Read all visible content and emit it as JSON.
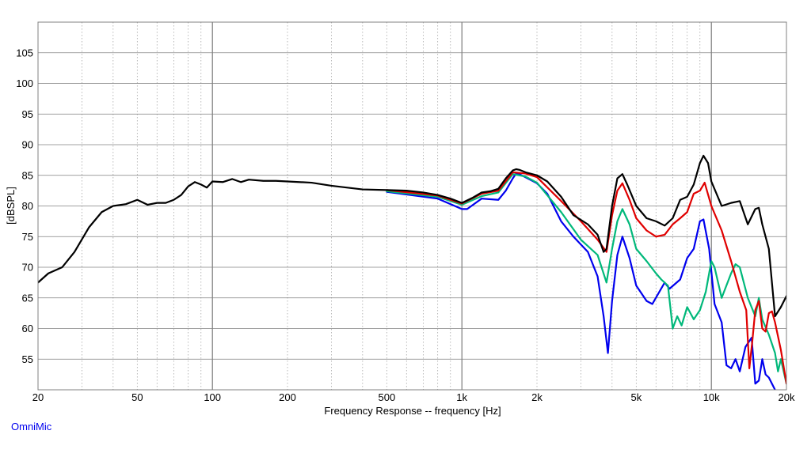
{
  "chart_data": {
    "type": "line",
    "xscale": "log",
    "xlim": [
      20,
      20000
    ],
    "ylim": [
      50,
      110
    ],
    "xlabel": "Frequency Response -- frequency [Hz]",
    "ylabel": "[dBSPL]",
    "x_ticks": [
      20,
      50,
      100,
      200,
      500,
      1000,
      2000,
      5000,
      10000,
      20000
    ],
    "x_tick_labels": [
      "20",
      "50",
      "100",
      "200",
      "500",
      "1k",
      "2k",
      "5k",
      "10k",
      "20k"
    ],
    "y_ticks": [
      55,
      60,
      65,
      70,
      75,
      80,
      85,
      90,
      95,
      100,
      105
    ],
    "y_tick_labels": [
      "55",
      "60",
      "65",
      "70",
      "75",
      "80",
      "85",
      "90",
      "95",
      "100",
      "105"
    ],
    "grid": true,
    "series": [
      {
        "color": "#000000",
        "points": [
          [
            20,
            67.5
          ],
          [
            22,
            69
          ],
          [
            25,
            70
          ],
          [
            28,
            72.5
          ],
          [
            32,
            76.5
          ],
          [
            36,
            79
          ],
          [
            40,
            80
          ],
          [
            45,
            80.3
          ],
          [
            50,
            81
          ],
          [
            55,
            80.2
          ],
          [
            60,
            80.5
          ],
          [
            65,
            80.5
          ],
          [
            70,
            81
          ],
          [
            75,
            81.8
          ],
          [
            80,
            83.2
          ],
          [
            85,
            83.9
          ],
          [
            90,
            83.5
          ],
          [
            95,
            83
          ],
          [
            100,
            84
          ],
          [
            110,
            83.9
          ],
          [
            120,
            84.4
          ],
          [
            130,
            83.9
          ],
          [
            140,
            84.3
          ],
          [
            160,
            84.1
          ],
          [
            180,
            84.1
          ],
          [
            200,
            84
          ],
          [
            250,
            83.8
          ],
          [
            300,
            83.3
          ],
          [
            400,
            82.7
          ],
          [
            500,
            82.6
          ],
          [
            600,
            82.5
          ],
          [
            700,
            82.2
          ],
          [
            800,
            81.8
          ],
          [
            900,
            81.2
          ],
          [
            1000,
            80.5
          ],
          [
            1100,
            81.3
          ],
          [
            1200,
            82.2
          ],
          [
            1300,
            82.4
          ],
          [
            1400,
            82.8
          ],
          [
            1500,
            84.5
          ],
          [
            1600,
            85.8
          ],
          [
            1650,
            86
          ],
          [
            1700,
            85.9
          ],
          [
            1800,
            85.5
          ],
          [
            2000,
            85
          ],
          [
            2200,
            84
          ],
          [
            2500,
            81.5
          ],
          [
            2800,
            78.5
          ],
          [
            3200,
            77
          ],
          [
            3500,
            75.3
          ],
          [
            3700,
            72.5
          ],
          [
            3800,
            73
          ],
          [
            4000,
            80
          ],
          [
            4200,
            84.5
          ],
          [
            4400,
            85.2
          ],
          [
            4600,
            83.5
          ],
          [
            5000,
            80
          ],
          [
            5500,
            78
          ],
          [
            6000,
            77.5
          ],
          [
            6500,
            76.8
          ],
          [
            7000,
            78
          ],
          [
            7500,
            81
          ],
          [
            8000,
            81.5
          ],
          [
            8500,
            83.5
          ],
          [
            9000,
            87
          ],
          [
            9300,
            88.2
          ],
          [
            9700,
            87
          ],
          [
            10000,
            84
          ],
          [
            11000,
            80
          ],
          [
            12000,
            80.5
          ],
          [
            13000,
            80.8
          ],
          [
            14000,
            77
          ],
          [
            15000,
            79.5
          ],
          [
            15500,
            79.7
          ],
          [
            16000,
            77
          ],
          [
            17000,
            73
          ],
          [
            18000,
            62
          ],
          [
            19000,
            63.5
          ],
          [
            20000,
            65.3
          ]
        ]
      },
      {
        "color": "#e00000",
        "points": [
          [
            500,
            82.6
          ],
          [
            800,
            81.7
          ],
          [
            1000,
            80.4
          ],
          [
            1200,
            82
          ],
          [
            1400,
            82.5
          ],
          [
            1600,
            85.5
          ],
          [
            1800,
            85.3
          ],
          [
            2000,
            84.7
          ],
          [
            2500,
            80.8
          ],
          [
            3000,
            77.5
          ],
          [
            3500,
            74.5
          ],
          [
            3800,
            72.5
          ],
          [
            4000,
            78.5
          ],
          [
            4200,
            82.5
          ],
          [
            4400,
            83.7
          ],
          [
            4700,
            81
          ],
          [
            5000,
            78
          ],
          [
            5500,
            76
          ],
          [
            6000,
            75
          ],
          [
            6500,
            75.3
          ],
          [
            7000,
            77
          ],
          [
            7500,
            78
          ],
          [
            8000,
            79
          ],
          [
            8500,
            82
          ],
          [
            9000,
            82.5
          ],
          [
            9400,
            83.8
          ],
          [
            10000,
            80
          ],
          [
            11000,
            76
          ],
          [
            12000,
            71
          ],
          [
            13000,
            66
          ],
          [
            13800,
            63
          ],
          [
            14200,
            53.5
          ],
          [
            14600,
            58
          ],
          [
            15000,
            63
          ],
          [
            15500,
            64.5
          ],
          [
            16000,
            60
          ],
          [
            16500,
            59.5
          ],
          [
            17000,
            62.5
          ],
          [
            17500,
            62.8
          ],
          [
            18000,
            61
          ],
          [
            19000,
            56.5
          ],
          [
            20000,
            51
          ]
        ]
      },
      {
        "color": "#00b87a",
        "points": [
          [
            500,
            82.4
          ],
          [
            800,
            81.5
          ],
          [
            1000,
            80.2
          ],
          [
            1200,
            81.6
          ],
          [
            1400,
            82.2
          ],
          [
            1600,
            85.2
          ],
          [
            1800,
            84.8
          ],
          [
            2000,
            83.8
          ],
          [
            2500,
            79
          ],
          [
            3000,
            74.5
          ],
          [
            3500,
            72
          ],
          [
            3800,
            67.5
          ],
          [
            4000,
            73
          ],
          [
            4200,
            77.5
          ],
          [
            4400,
            79.5
          ],
          [
            4700,
            77
          ],
          [
            5000,
            73
          ],
          [
            5500,
            71
          ],
          [
            6000,
            69
          ],
          [
            6300,
            68
          ],
          [
            6700,
            67
          ],
          [
            7000,
            60
          ],
          [
            7300,
            62
          ],
          [
            7600,
            60.5
          ],
          [
            8000,
            63.5
          ],
          [
            8500,
            61.5
          ],
          [
            9000,
            63
          ],
          [
            9500,
            66
          ],
          [
            10000,
            71
          ],
          [
            10300,
            70
          ],
          [
            11000,
            65
          ],
          [
            12000,
            69
          ],
          [
            12500,
            70.5
          ],
          [
            13000,
            70
          ],
          [
            14000,
            65
          ],
          [
            15000,
            62
          ],
          [
            15500,
            65
          ],
          [
            16000,
            61.5
          ],
          [
            17000,
            59
          ],
          [
            18000,
            56
          ],
          [
            18500,
            53
          ],
          [
            19000,
            55
          ],
          [
            20000,
            51
          ]
        ]
      },
      {
        "color": "#0000ee",
        "points": [
          [
            500,
            82.3
          ],
          [
            800,
            81.2
          ],
          [
            1000,
            79.5
          ],
          [
            1050,
            79.5
          ],
          [
            1200,
            81.2
          ],
          [
            1400,
            81
          ],
          [
            1500,
            82.5
          ],
          [
            1600,
            84.5
          ],
          [
            1650,
            85.3
          ],
          [
            1700,
            85.2
          ],
          [
            2000,
            83.7
          ],
          [
            2200,
            82
          ],
          [
            2500,
            77.5
          ],
          [
            2800,
            75
          ],
          [
            3200,
            72.5
          ],
          [
            3500,
            68.5
          ],
          [
            3700,
            62
          ],
          [
            3850,
            56
          ],
          [
            4000,
            64.5
          ],
          [
            4200,
            72
          ],
          [
            4400,
            75
          ],
          [
            4700,
            71.5
          ],
          [
            5000,
            67
          ],
          [
            5500,
            64.5
          ],
          [
            5800,
            64
          ],
          [
            6500,
            67.5
          ],
          [
            6800,
            66.5
          ],
          [
            7500,
            68
          ],
          [
            8000,
            71.5
          ],
          [
            8500,
            73
          ],
          [
            9000,
            77.5
          ],
          [
            9300,
            77.8
          ],
          [
            9800,
            73
          ],
          [
            10300,
            64
          ],
          [
            11000,
            61
          ],
          [
            11500,
            54
          ],
          [
            12000,
            53.5
          ],
          [
            12500,
            55
          ],
          [
            13000,
            53
          ],
          [
            13700,
            57
          ],
          [
            14500,
            58.5
          ],
          [
            15000,
            51
          ],
          [
            15500,
            51.5
          ],
          [
            16000,
            55
          ],
          [
            16500,
            52.5
          ],
          [
            17000,
            52
          ],
          [
            18000,
            50
          ]
        ]
      }
    ],
    "brand": "OmniMic"
  }
}
